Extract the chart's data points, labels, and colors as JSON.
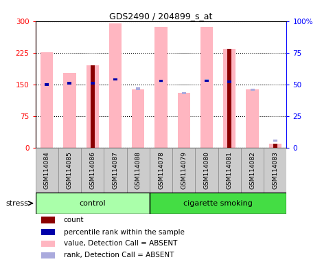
{
  "title": "GDS2490 / 204899_s_at",
  "samples": [
    "GSM114084",
    "GSM114085",
    "GSM114086",
    "GSM114087",
    "GSM114088",
    "GSM114078",
    "GSM114079",
    "GSM114080",
    "GSM114081",
    "GSM114082",
    "GSM114083"
  ],
  "n_control": 5,
  "n_smoking": 6,
  "count_values": [
    0,
    0,
    195,
    0,
    0,
    0,
    0,
    0,
    235,
    0,
    10
  ],
  "rank_pct": [
    50,
    51,
    51,
    54,
    0,
    53,
    0,
    53,
    52,
    0,
    0
  ],
  "pink_values": [
    226,
    178,
    195,
    295,
    138,
    287,
    130,
    287,
    235,
    138,
    10
  ],
  "blue_sq_values": [
    0,
    0,
    0,
    162,
    140,
    158,
    130,
    160,
    157,
    138,
    17
  ],
  "count_color": "#8B0000",
  "rank_color": "#0000AA",
  "pink_color": "#FFB6C1",
  "lightblue_color": "#AAAADD",
  "ylim_left": [
    0,
    300
  ],
  "ylim_right": [
    0,
    100
  ],
  "yticks_left": [
    0,
    75,
    150,
    225,
    300
  ],
  "yticks_right": [
    0,
    25,
    50,
    75,
    100
  ],
  "ytick_right_labels": [
    "0",
    "25",
    "50",
    "75",
    "100%"
  ],
  "control_label": "control",
  "smoking_label": "cigarette smoking",
  "stress_label": "stress",
  "legend_items": [
    {
      "label": "count",
      "color": "#8B0000"
    },
    {
      "label": "percentile rank within the sample",
      "color": "#0000AA"
    },
    {
      "label": "value, Detection Call = ABSENT",
      "color": "#FFB6C1"
    },
    {
      "label": "rank, Detection Call = ABSENT",
      "color": "#AAAADD"
    }
  ],
  "ctrl_green": "#AAFFAA",
  "smoke_green": "#44DD44",
  "gray_col": "#CCCCCC"
}
